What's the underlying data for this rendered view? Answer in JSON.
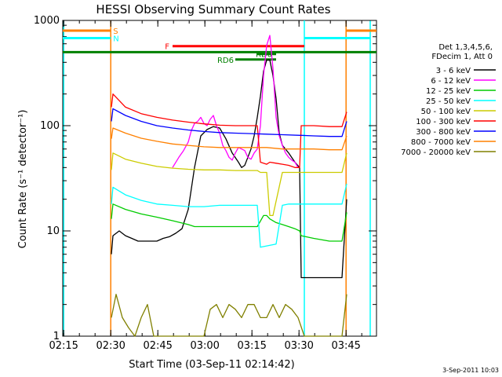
{
  "chart_data": {
    "type": "line",
    "title": "HESSI Observing Summary Count Rates",
    "xlabel": "Start Time (03-Sep-11 02:14:42)",
    "ylabel": "Count Rate (s⁻¹ detector⁻¹)",
    "yscale": "log",
    "ylim": [
      1,
      1000
    ],
    "xlim_minutes": [
      0,
      100
    ],
    "x_tick_labels": [
      "02:15",
      "02:30",
      "02:45",
      "03:00",
      "03:15",
      "03:30",
      "03:45"
    ],
    "x_tick_minutes": [
      0.3,
      15.3,
      30.3,
      45.3,
      60.3,
      75.3,
      90.3
    ],
    "y_tick_labels": [
      "1",
      "10",
      "100",
      "1000"
    ],
    "y_tick_values": [
      1,
      10,
      100,
      1000
    ],
    "legend_header": [
      "Det 1,3,4,5,6,",
      "FDecim 1, Att 0"
    ],
    "legend_position": "right",
    "series": [
      {
        "name": "3 - 6 keV",
        "color": "#000000",
        "x": [
          15.5,
          16,
          18,
          20,
          22,
          24,
          26,
          28,
          30,
          32,
          34,
          36,
          38,
          40,
          42,
          44,
          46,
          48,
          50,
          52,
          54,
          56,
          57,
          58,
          59,
          60,
          61,
          62,
          63,
          64,
          65,
          66,
          67,
          68,
          69,
          70,
          72,
          74,
          75.5,
          76,
          78,
          80,
          82,
          84,
          86,
          88,
          89,
          90.5
        ],
        "y": [
          6,
          9,
          10,
          9,
          8.5,
          8,
          8,
          8,
          8,
          8.5,
          8.8,
          9.5,
          10.5,
          16,
          40,
          80,
          92,
          98,
          95,
          75,
          55,
          45,
          40,
          42,
          50,
          60,
          80,
          120,
          190,
          330,
          420,
          420,
          300,
          180,
          85,
          65,
          55,
          45,
          40,
          3.6,
          3.6,
          3.6,
          3.6,
          3.6,
          3.6,
          3.6,
          3.6,
          20
        ]
      },
      {
        "name": "6 - 12 keV",
        "color": "#ff00ff",
        "x": [
          35,
          37,
          38.5,
          40,
          41,
          42,
          43,
          44,
          45,
          46,
          47,
          48,
          49,
          50,
          51,
          52,
          53,
          54,
          55,
          56,
          57,
          58,
          59,
          60,
          61,
          62,
          63,
          64,
          65,
          66,
          67,
          68,
          69,
          70,
          71,
          72,
          73,
          74,
          75
        ],
        "y": [
          40,
          50,
          58,
          70,
          90,
          105,
          110,
          120,
          105,
          100,
          115,
          125,
          100,
          85,
          65,
          58,
          50,
          47,
          55,
          62,
          60,
          58,
          50,
          48,
          55,
          60,
          100,
          300,
          580,
          720,
          350,
          120,
          80,
          65,
          55,
          50,
          47,
          45,
          40
        ]
      },
      {
        "name": "12 - 25 keV",
        "color": "#00cc00",
        "x": [
          15.5,
          16,
          20,
          25,
          30,
          35,
          40,
          42,
          44,
          46,
          48,
          50,
          55,
          60,
          62,
          64,
          65,
          66,
          68,
          70,
          72,
          74,
          75.5,
          76,
          80,
          85,
          89,
          90.5
        ],
        "y": [
          13,
          18,
          16,
          14.5,
          13.5,
          12.5,
          11.5,
          11,
          11,
          11,
          11,
          11,
          11,
          11,
          11,
          14,
          14,
          13,
          12,
          11.5,
          11,
          10.5,
          10,
          9,
          8.5,
          8,
          8,
          15
        ]
      },
      {
        "name": "25 - 50 keV",
        "color": "#00ffff",
        "x": [
          15.5,
          16,
          20,
          25,
          30,
          35,
          40,
          45,
          50,
          55,
          60,
          62,
          63,
          65,
          68,
          70,
          72,
          74,
          75.5,
          76,
          80,
          85,
          89,
          90.5
        ],
        "y": [
          18,
          26,
          22,
          19.5,
          18,
          17.5,
          17,
          17,
          17.5,
          17.5,
          17.5,
          17.5,
          7,
          7.2,
          7.5,
          17.5,
          18,
          18,
          18,
          18,
          18,
          18,
          18,
          28
        ]
      },
      {
        "name": "50 - 100 keV",
        "color": "#cccc00",
        "x": [
          15.5,
          16,
          20,
          25,
          30,
          35,
          40,
          45,
          50,
          55,
          60,
          62,
          63,
          65,
          66,
          67,
          70,
          72,
          74,
          75.5,
          76,
          80,
          85,
          89,
          90.5
        ],
        "y": [
          38,
          55,
          48,
          44,
          41,
          39.5,
          38.5,
          38,
          38,
          37.5,
          37.5,
          37.5,
          36,
          36,
          14,
          14,
          36,
          36,
          36,
          36,
          36,
          36,
          36,
          36,
          55
        ]
      },
      {
        "name": "100 - 300 keV",
        "color": "#ff0000",
        "x": [
          15.5,
          16,
          20,
          25,
          30,
          35,
          40,
          45,
          50,
          55,
          60,
          62,
          63,
          65,
          66,
          68,
          70,
          72,
          74,
          75.5,
          76,
          80,
          85,
          89,
          90.5
        ],
        "y": [
          150,
          200,
          150,
          130,
          120,
          113,
          108,
          104,
          101,
          100,
          100,
          100,
          45,
          43,
          45,
          44,
          43,
          42,
          40,
          40,
          100,
          100,
          98,
          98,
          135
        ]
      },
      {
        "name": "300 - 800 keV",
        "color": "#0000ff",
        "x": [
          15.5,
          16,
          20,
          25,
          30,
          35,
          40,
          45,
          50,
          55,
          60,
          65,
          70,
          75.5,
          76,
          80,
          85,
          89,
          90.5
        ],
        "y": [
          110,
          145,
          125,
          110,
          100,
          95,
          91,
          88,
          86,
          85,
          84,
          83,
          82,
          81,
          81,
          80,
          79,
          79,
          110
        ]
      },
      {
        "name": "800 - 7000 keV",
        "color": "#ff8000",
        "x": [
          15.5,
          16,
          20,
          25,
          30,
          35,
          40,
          45,
          50,
          55,
          60,
          65,
          70,
          75.5,
          76,
          80,
          85,
          89,
          90.5
        ],
        "y": [
          75,
          95,
          85,
          76,
          71,
          67,
          65,
          63,
          62,
          62,
          62,
          62,
          60,
          60,
          60,
          60,
          59,
          59,
          80
        ]
      },
      {
        "name": "7000 - 20000 keV",
        "color": "#808000",
        "x": [
          15.5,
          17,
          19,
          21,
          23,
          25,
          27,
          29,
          31,
          33,
          35,
          37,
          39,
          41,
          43,
          45,
          47,
          49,
          51,
          53,
          55,
          57,
          59,
          61,
          63,
          65,
          67,
          69,
          71,
          73,
          75,
          77,
          80,
          83,
          86,
          89,
          90.5
        ],
        "y": [
          1.5,
          2.5,
          1.5,
          1.2,
          1,
          1.5,
          2,
          1,
          1,
          1,
          1,
          1,
          1,
          1,
          1,
          1,
          1.8,
          2,
          1.5,
          2,
          1.8,
          1.5,
          2,
          2,
          1.5,
          1.5,
          2,
          1.5,
          2,
          1.8,
          1.5,
          1,
          1,
          1,
          1,
          1,
          2.5
        ]
      }
    ],
    "flag_bars": [
      {
        "label": "S",
        "color": "#ff8000",
        "value": 800,
        "segments": [
          [
            0,
            15.3
          ],
          [
            90.3,
            100
          ]
        ]
      },
      {
        "label": "N",
        "color": "#00ffff",
        "value": 680,
        "segments": [
          [
            0,
            15.3
          ],
          [
            77,
            98
          ]
        ]
      },
      {
        "label": "F",
        "color": "#ff0000",
        "value": 570,
        "segments": [
          [
            35,
            77
          ]
        ]
      },
      {
        "label": "",
        "color": "#008000",
        "value": 500,
        "segments": [
          [
            0,
            100
          ]
        ]
      },
      {
        "label": "RD0",
        "color": "#008000",
        "value": 480,
        "segments": [
          [
            62,
            68
          ]
        ]
      },
      {
        "label": "RD6",
        "color": "#008000",
        "value": 425,
        "segments": [
          [
            55,
            68
          ]
        ]
      }
    ],
    "vertical_markers": [
      {
        "x": 0.3,
        "color": "#00ffff"
      },
      {
        "x": 15.3,
        "color": "#ff8000"
      },
      {
        "x": 77,
        "color": "#00ffff"
      },
      {
        "x": 90.3,
        "color": "#ff8000"
      },
      {
        "x": 98,
        "color": "#00ffff"
      }
    ]
  },
  "footer": {
    "timestamp": "3-Sep-2011 10:03"
  }
}
